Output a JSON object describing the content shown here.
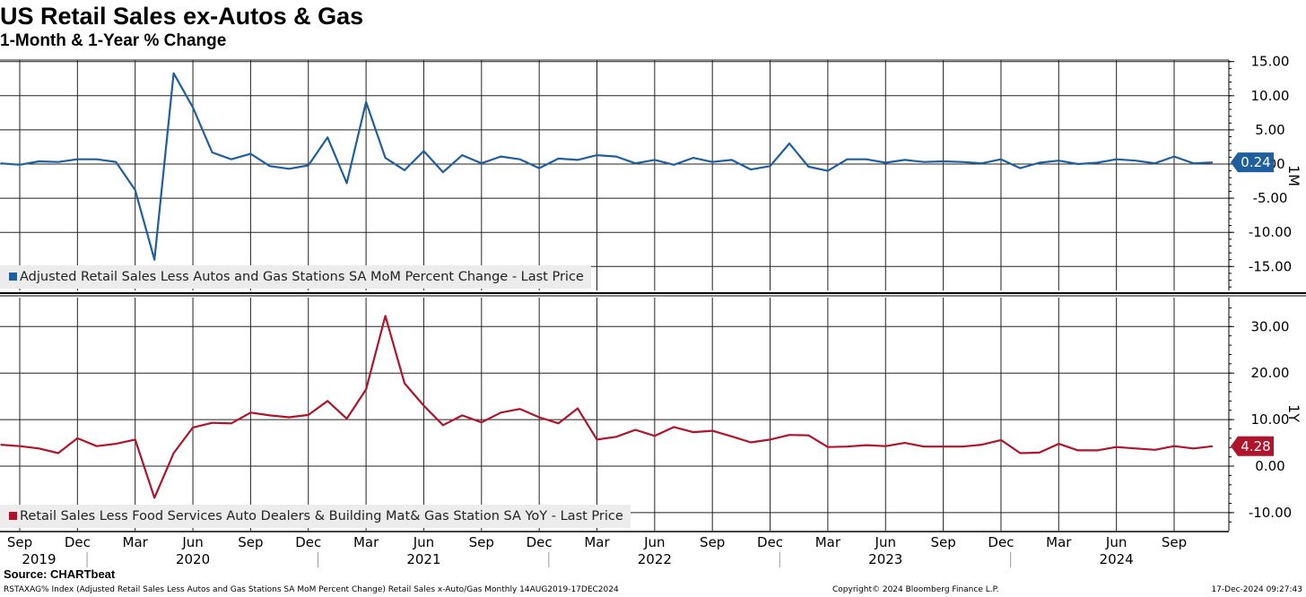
{
  "title": "US Retail Sales ex-Autos & Gas",
  "subtitle": "1-Month & 1-Year % Change",
  "source": "Source: CHARTbeat",
  "footer": {
    "left": "RSTAXAG% Index (Adjusted Retail Sales Less Autos and Gas Stations SA MoM Percent Change) Retail Sales x-Auto/Gas  Monthly 14AUG2019-17DEC2024",
    "center": "Copyright© 2024 Bloomberg Finance L.P.",
    "right": "17-Dec-2024 09:27:43"
  },
  "colors": {
    "mom": "#1f5f9e",
    "yoy": "#b0142a",
    "grid": "#000000",
    "legend_bg": "#ececec"
  },
  "chart_data": [
    {
      "type": "line",
      "panel_label": "1M",
      "series": [
        {
          "name": "Adjusted Retail Sales Less Autos and Gas Stations SA MoM Percent Change - Last Price",
          "x_start": "2019-08",
          "values": [
            0.1,
            -0.1,
            0.4,
            0.3,
            0.7,
            0.7,
            0.3,
            -3.8,
            -14.0,
            13.3,
            8.3,
            1.7,
            0.7,
            1.5,
            -0.3,
            -0.7,
            -0.2,
            3.9,
            -2.8,
            9.1,
            0.9,
            -0.9,
            1.9,
            -1.2,
            1.3,
            0.1,
            1.1,
            0.7,
            -0.6,
            0.8,
            0.6,
            1.3,
            1.1,
            0.1,
            0.6,
            -0.1,
            0.9,
            0.3,
            0.6,
            -0.8,
            -0.3,
            3.0,
            -0.4,
            -1.0,
            0.7,
            0.7,
            0.2,
            0.6,
            0.3,
            0.4,
            0.3,
            0.1,
            0.7,
            -0.6,
            0.2,
            0.5,
            0.0,
            0.2,
            0.7,
            0.5,
            0.1,
            1.1,
            0.1,
            0.24
          ],
          "last_label": "0.24"
        }
      ],
      "y_ticks": [
        "15.00",
        "10.00",
        "5.00",
        "0.00",
        "-5.00",
        "-10.00",
        "-15.00"
      ],
      "ylim": [
        -18.5,
        16.5
      ],
      "grid": true,
      "legend_position": "bottom-left"
    },
    {
      "type": "line",
      "panel_label": "1Y",
      "series": [
        {
          "name": "Retail Sales Less Food Services Auto Dealers & Building Mat& Gas Station SA YoY - Last Price",
          "x_start": "2019-08",
          "values": [
            4.6,
            4.3,
            3.8,
            2.8,
            6.0,
            4.3,
            4.8,
            5.7,
            -6.8,
            2.8,
            8.3,
            9.3,
            9.2,
            11.5,
            10.9,
            10.5,
            11.0,
            14.0,
            10.2,
            16.5,
            32.3,
            17.8,
            13.0,
            8.8,
            10.9,
            9.4,
            11.5,
            12.3,
            10.5,
            9.2,
            12.4,
            5.7,
            6.3,
            7.8,
            6.5,
            8.4,
            7.3,
            7.6,
            6.4,
            5.1,
            5.7,
            6.7,
            6.6,
            4.1,
            4.2,
            4.5,
            4.3,
            5.0,
            4.2,
            4.2,
            4.2,
            4.6,
            5.6,
            2.8,
            2.9,
            4.8,
            3.4,
            3.4,
            4.1,
            3.8,
            3.5,
            4.3,
            3.8,
            4.28
          ],
          "last_label": "4.28"
        }
      ],
      "y_ticks": [
        "30.00",
        "20.00",
        "10.00",
        "0.00",
        "-10.00"
      ],
      "ylim": [
        -13.5,
        35
      ],
      "grid": true,
      "legend_position": "bottom-left"
    }
  ],
  "x_axis": {
    "month_ticks": [
      {
        "label": "Sep",
        "month": "2019-09"
      },
      {
        "label": "Dec",
        "month": "2019-12"
      },
      {
        "label": "Mar",
        "month": "2020-03"
      },
      {
        "label": "Jun",
        "month": "2020-06"
      },
      {
        "label": "Sep",
        "month": "2020-09"
      },
      {
        "label": "Dec",
        "month": "2020-12"
      },
      {
        "label": "Mar",
        "month": "2021-03"
      },
      {
        "label": "Jun",
        "month": "2021-06"
      },
      {
        "label": "Sep",
        "month": "2021-09"
      },
      {
        "label": "Dec",
        "month": "2021-12"
      },
      {
        "label": "Mar",
        "month": "2022-03"
      },
      {
        "label": "Jun",
        "month": "2022-06"
      },
      {
        "label": "Sep",
        "month": "2022-09"
      },
      {
        "label": "Dec",
        "month": "2022-12"
      },
      {
        "label": "Mar",
        "month": "2023-03"
      },
      {
        "label": "Jun",
        "month": "2023-06"
      },
      {
        "label": "Sep",
        "month": "2023-09"
      },
      {
        "label": "Dec",
        "month": "2023-12"
      },
      {
        "label": "Mar",
        "month": "2024-03"
      },
      {
        "label": "Jun",
        "month": "2024-06"
      },
      {
        "label": "Sep",
        "month": "2024-09"
      }
    ],
    "year_labels": [
      {
        "label": "2019",
        "month": "2019-10"
      },
      {
        "label": "2020",
        "month": "2020-06"
      },
      {
        "label": "2021",
        "month": "2021-06"
      },
      {
        "label": "2022",
        "month": "2022-06"
      },
      {
        "label": "2023",
        "month": "2023-06"
      },
      {
        "label": "2024",
        "month": "2024-06"
      }
    ]
  }
}
